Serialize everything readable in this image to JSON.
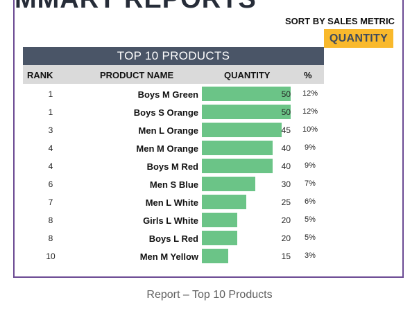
{
  "report": {
    "cutoff_title": "MMARY REPORTS",
    "sort_label": "SORT BY SALES METRIC",
    "sort_value": "QUANTITY",
    "banner": "TOP 10 PRODUCTS",
    "columns": {
      "rank": "RANK",
      "product": "PRODUCT NAME",
      "quantity": "QUANTITY",
      "percent": "%"
    },
    "bar_color": "#6bc487",
    "bar_max": 50,
    "rows": [
      {
        "rank": "1",
        "name": "Boys M Green",
        "qty": 50,
        "qty_text": "50",
        "pct": "12%"
      },
      {
        "rank": "1",
        "name": "Boys S Orange",
        "qty": 50,
        "qty_text": "50",
        "pct": "12%"
      },
      {
        "rank": "3",
        "name": "Men L Orange",
        "qty": 45,
        "qty_text": "45",
        "pct": "10%"
      },
      {
        "rank": "4",
        "name": "Men M Orange",
        "qty": 40,
        "qty_text": "40",
        "pct": "9%"
      },
      {
        "rank": "4",
        "name": "Boys M Red",
        "qty": 40,
        "qty_text": "40",
        "pct": "9%"
      },
      {
        "rank": "6",
        "name": "Men S Blue",
        "qty": 30,
        "qty_text": "30",
        "pct": "7%"
      },
      {
        "rank": "7",
        "name": "Men L White",
        "qty": 25,
        "qty_text": "25",
        "pct": "6%"
      },
      {
        "rank": "8",
        "name": "Girls L White",
        "qty": 20,
        "qty_text": "20",
        "pct": "5%"
      },
      {
        "rank": "8",
        "name": "Boys L Red",
        "qty": 20,
        "qty_text": "20",
        "pct": "5%"
      },
      {
        "rank": "10",
        "name": "Men M Yellow",
        "qty": 15,
        "qty_text": "15",
        "pct": "3%"
      }
    ]
  },
  "caption": "Report – Top 10 Products"
}
